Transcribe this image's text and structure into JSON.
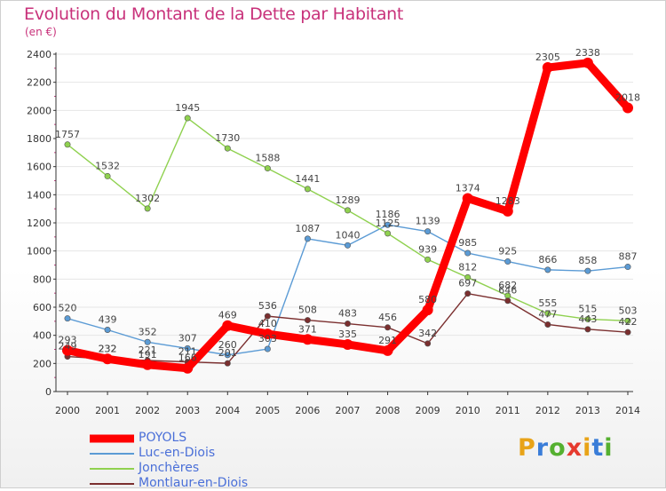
{
  "colors": {
    "title": "#c8317a",
    "axis": "#333333",
    "grid": "#e6e6e6",
    "legend_text": "#4a6fd8"
  },
  "brand": {
    "letters": [
      "P",
      "r",
      "o",
      "x",
      "i",
      "t",
      "i"
    ],
    "letter_colors": [
      "#e8a318",
      "#3a7dd8",
      "#55b030",
      "#e63a2e",
      "#e8a318",
      "#3a7dd8",
      "#55b030"
    ]
  },
  "chart_data": {
    "type": "line",
    "title": "Evolution du Montant de la Dette par Habitant",
    "subtitle": "(en €)",
    "xlabel": "",
    "ylabel": "",
    "x": [
      "2000",
      "2001",
      "2002",
      "2003",
      "2004",
      "2005",
      "2006",
      "2007",
      "2008",
      "2009",
      "2010",
      "2011",
      "2012",
      "2013",
      "2014"
    ],
    "ylim": [
      0,
      2400
    ],
    "yticks": [
      "0",
      "200",
      "400",
      "600",
      "800",
      "1000",
      "1200",
      "1400",
      "1600",
      "1800",
      "2000",
      "2200",
      "2400"
    ],
    "grid": true,
    "legend_position": "bottom-left",
    "series": [
      {
        "name": "POYOLS",
        "color": "#ff0000",
        "width": "thick",
        "values": [
          293,
          232,
          191,
          166,
          469,
          410,
          371,
          335,
          291,
          580,
          1374,
          1283,
          2305,
          2338,
          2018
        ],
        "labels": [
          "293",
          "232",
          "191",
          "166",
          "469",
          "410",
          "371",
          "335",
          "291",
          "580",
          "1374",
          "1283",
          "2305",
          "2338",
          "2018"
        ]
      },
      {
        "name": "Luc-en-Diois",
        "color": "#5b9bd5",
        "width": "thin",
        "values": [
          520,
          439,
          352,
          307,
          260,
          303,
          1087,
          1040,
          1186,
          1139,
          985,
          925,
          866,
          858,
          887
        ],
        "labels": [
          "520",
          "439",
          "352",
          "307",
          "260",
          "303",
          "1087",
          "1040",
          "1186",
          "1139",
          "985",
          "925",
          "866",
          "858",
          "887"
        ]
      },
      {
        "name": "Jonchères",
        "color": "#8fd14f",
        "width": "thin",
        "values": [
          1757,
          1532,
          1302,
          1945,
          1730,
          1588,
          1441,
          1289,
          1125,
          939,
          812,
          682,
          555,
          515,
          503
        ],
        "labels": [
          "1757",
          "1532",
          "1302",
          "1945",
          "1730",
          "1588",
          "1441",
          "1289",
          "1125",
          "939",
          "812",
          "682",
          "555",
          "515",
          "503"
        ]
      },
      {
        "name": "Montlaur-en-Diois",
        "color": "#7b2f2f",
        "width": "thin",
        "values": [
          249,
          232,
          221,
          211,
          201,
          536,
          508,
          483,
          456,
          342,
          697,
          646,
          477,
          443,
          422
        ],
        "labels": [
          "249",
          "232",
          "221",
          "211",
          "201",
          "536",
          "508",
          "483",
          "456",
          "342",
          "697",
          "646",
          "477",
          "443",
          "422"
        ]
      }
    ]
  }
}
